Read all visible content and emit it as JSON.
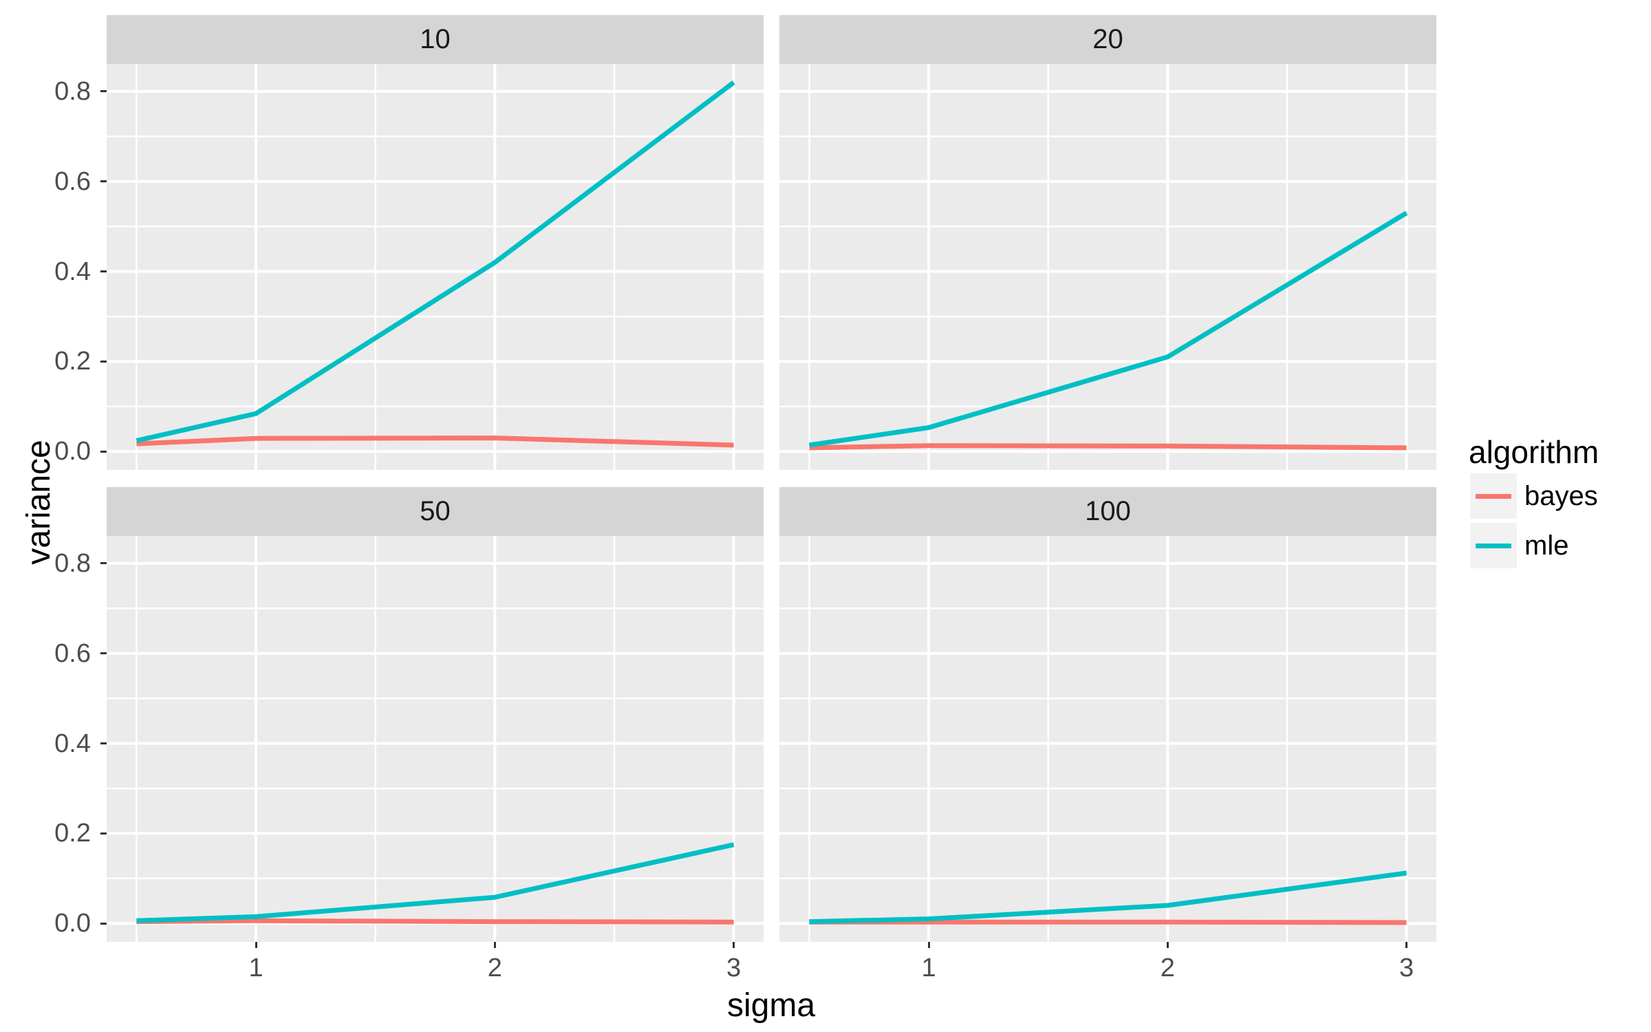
{
  "figure": {
    "background": "#ffffff",
    "colors": {
      "panel_bg": "#EBEBEB",
      "strip_bg": "#D5D5D5",
      "grid": "#FFFFFF",
      "axis_text": "#4D4D4D",
      "tick_mark": "#333333",
      "legend_key_bg": "#F2F2F2",
      "bayes": "#F8766D",
      "mle": "#00BFC4"
    }
  },
  "legend": {
    "title": "algorithm",
    "items": [
      {
        "label": "bayes",
        "color": "#F8766D"
      },
      {
        "label": "mle",
        "color": "#00BFC4"
      }
    ]
  },
  "chart_data": {
    "type": "line",
    "title": "",
    "xlabel": "sigma",
    "ylabel": "variance",
    "legend_title": "algorithm",
    "legend_position": "right",
    "grid": "white major and minor gridlines on grey panel (ggplot2 theme_grey)",
    "facet_layout": [
      [
        "10",
        "20"
      ],
      [
        "50",
        "100"
      ]
    ],
    "x": [
      0.5,
      1,
      2,
      3
    ],
    "xlim": [
      0.375,
      3.125
    ],
    "ylim": [
      -0.041,
      0.861
    ],
    "x_ticks": [
      1,
      2,
      3
    ],
    "x_tick_labels": [
      "1",
      "2",
      "3"
    ],
    "x_minor_ticks": [
      0.5,
      1.5,
      2.5
    ],
    "y_ticks": [
      0.0,
      0.2,
      0.4,
      0.6,
      0.8
    ],
    "y_tick_labels": [
      "0.0",
      "0.2",
      "0.4",
      "0.6",
      "0.8"
    ],
    "y_minor_ticks": [
      0.1,
      0.3,
      0.5,
      0.7
    ],
    "facets": [
      {
        "label": "10",
        "series": [
          {
            "name": "bayes",
            "color": "#F8766D",
            "values": [
              0.017,
              0.029,
              0.03,
              0.014
            ]
          },
          {
            "name": "mle",
            "color": "#00BFC4",
            "values": [
              0.024,
              0.084,
              0.42,
              0.82
            ]
          }
        ]
      },
      {
        "label": "20",
        "series": [
          {
            "name": "bayes",
            "color": "#F8766D",
            "values": [
              0.008,
              0.013,
              0.012,
              0.008
            ]
          },
          {
            "name": "mle",
            "color": "#00BFC4",
            "values": [
              0.014,
              0.053,
              0.21,
              0.53
            ]
          }
        ]
      },
      {
        "label": "50",
        "series": [
          {
            "name": "bayes",
            "color": "#F8766D",
            "values": [
              0.004,
              0.006,
              0.004,
              0.003
            ]
          },
          {
            "name": "mle",
            "color": "#00BFC4",
            "values": [
              0.006,
              0.015,
              0.058,
              0.175
            ]
          }
        ]
      },
      {
        "label": "100",
        "series": [
          {
            "name": "bayes",
            "color": "#F8766D",
            "values": [
              0.003,
              0.003,
              0.003,
              0.002
            ]
          },
          {
            "name": "mle",
            "color": "#00BFC4",
            "values": [
              0.004,
              0.01,
              0.04,
              0.112
            ]
          }
        ]
      }
    ]
  }
}
